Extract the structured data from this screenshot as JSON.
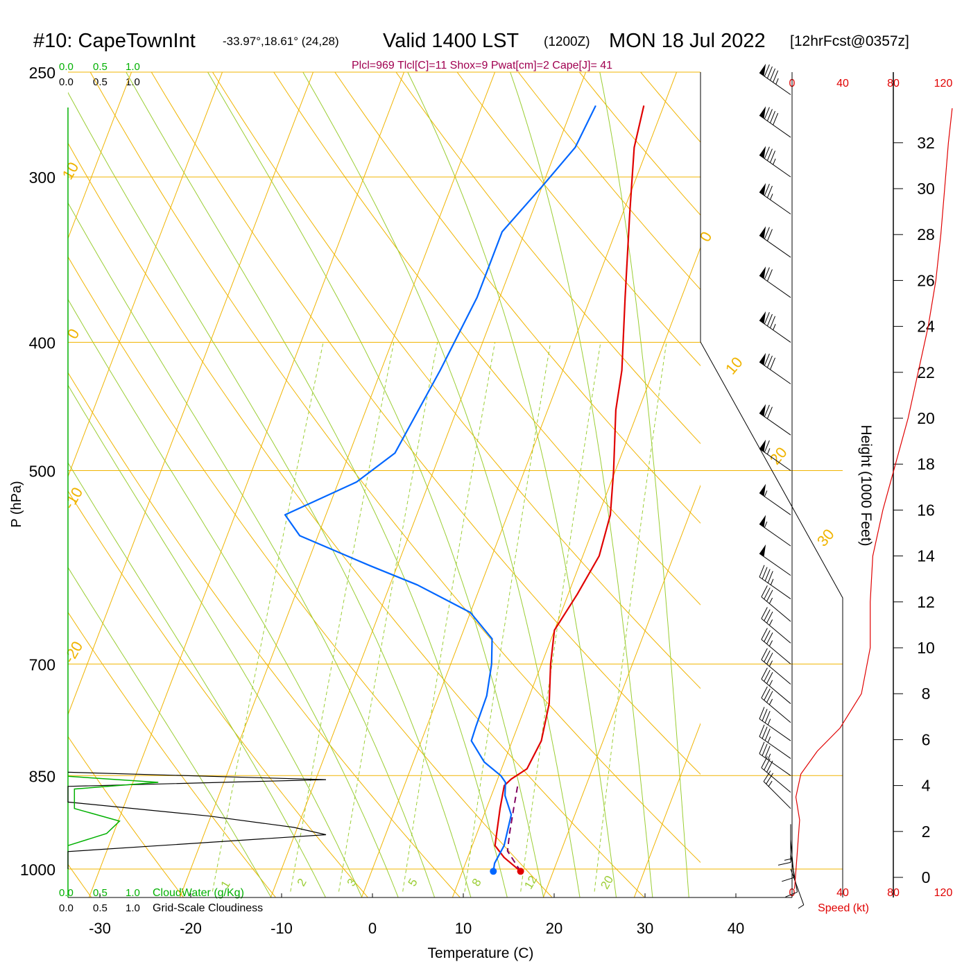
{
  "header": {
    "station": "#10: CapeTownInt",
    "coords": "-33.97°,18.61° (24,28)",
    "valid": "Valid 1400 LST",
    "utc": "(1200Z)",
    "date": "MON 18 Jul 2022",
    "fcst": "[12hrFcst@0357z]",
    "params": "Plcl=969 Tlcl[C]=11 Shox=9 Pwat[cm]=2 Cape[J]= 41"
  },
  "axes": {
    "xlabel": "Temperature (C)",
    "ylabel": "P (hPa)",
    "hlabel": "Height (1000 Feet)",
    "speed_label": "Speed (kt)",
    "cloudwater_label": "CloudWater (g/Kg)",
    "cloudiness_label": "Grid-Scale Cloudiness"
  },
  "colors": {
    "isobar": "#f0b400",
    "dry_adiabat": "#f0b400",
    "moist_adiabat": "#9acd32",
    "mixing_ratio": "#9acd32",
    "temperature": "#e00000",
    "dewpoint": "#0066ff",
    "parcel": "#800060",
    "cloudwater": "#00b000",
    "speed": "#e00000",
    "params_text": "#a00050"
  },
  "chart_data": {
    "type": "line",
    "title": "#10: CapeTownInt",
    "xlim": [
      -34,
      46
    ],
    "ylim_hpa": [
      1040,
      250
    ],
    "temp_ticks": [
      -30,
      -20,
      -10,
      0,
      10,
      20,
      30,
      40
    ],
    "pressure_ticks": [
      250,
      300,
      400,
      500,
      700,
      850,
      1000
    ],
    "height_ticks_kft": [
      0,
      2,
      4,
      6,
      8,
      10,
      12,
      14,
      16,
      18,
      20,
      22,
      24,
      26,
      28,
      30,
      32
    ],
    "speed_ticks": [
      "0",
      "40",
      "80",
      "120"
    ],
    "cloud_ticks": [
      "0.0",
      "0.5",
      "1.0"
    ],
    "dry_adiabat_labels": [
      "-20",
      "-10",
      "0",
      "10",
      "0",
      "10",
      "20",
      "30"
    ],
    "mixing_ratio_labels": [
      "1",
      "2",
      "3",
      "5",
      "8",
      "12",
      "20"
    ],
    "series": [
      {
        "name": "Temperature",
        "points": [
          [
            16.4,
            1004
          ],
          [
            14,
            980
          ],
          [
            12.5,
            960
          ],
          [
            11.5,
            900
          ],
          [
            11,
            865
          ],
          [
            11.5,
            855
          ],
          [
            12.8,
            840
          ],
          [
            13.2,
            800
          ],
          [
            12.5,
            750
          ],
          [
            11,
            700
          ],
          [
            10,
            660
          ],
          [
            11,
            620
          ],
          [
            11.8,
            580
          ],
          [
            11.3,
            540
          ],
          [
            9.8,
            500
          ],
          [
            7.5,
            450
          ],
          [
            6.5,
            420
          ],
          [
            3.8,
            370
          ],
          [
            0.8,
            320
          ],
          [
            -1.5,
            285
          ],
          [
            -2.2,
            265
          ]
        ]
      },
      {
        "name": "Dewpoint",
        "points": [
          [
            13.4,
            1004
          ],
          [
            13.2,
            990
          ],
          [
            13.5,
            960
          ],
          [
            13,
            910
          ],
          [
            11.5,
            880
          ],
          [
            11,
            860
          ],
          [
            10.2,
            850
          ],
          [
            7.8,
            830
          ],
          [
            5.5,
            800
          ],
          [
            5.4,
            780
          ],
          [
            5.3,
            740
          ],
          [
            4.5,
            700
          ],
          [
            3.5,
            670
          ],
          [
            0,
            640
          ],
          [
            -7,
            610
          ],
          [
            -13,
            590
          ],
          [
            -22,
            560
          ],
          [
            -24.5,
            540
          ],
          [
            -18,
            510
          ],
          [
            -15,
            485
          ],
          [
            -13.5,
            420
          ],
          [
            -12.5,
            370
          ],
          [
            -12.5,
            350
          ],
          [
            -12.5,
            330
          ],
          [
            -10,
            305
          ],
          [
            -8,
            285
          ],
          [
            -7.5,
            265
          ]
        ]
      },
      {
        "name": "Parcel",
        "points": [
          [
            16.4,
            1004
          ],
          [
            14.1,
            969
          ],
          [
            13.6,
            940
          ],
          [
            13,
            900
          ],
          [
            12.4,
            860
          ]
        ]
      }
    ],
    "winds": [
      {
        "p": 1000,
        "dir": 160,
        "spd": 5
      },
      {
        "p": 975,
        "dir": 170,
        "spd": 8
      },
      {
        "p": 950,
        "dir": 175,
        "spd": 12
      },
      {
        "p": 925,
        "dir": 180,
        "spd": 14
      },
      {
        "p": 900,
        "dir": 315,
        "spd": 25
      },
      {
        "p": 875,
        "dir": 310,
        "spd": 30
      },
      {
        "p": 850,
        "dir": 305,
        "spd": 35
      },
      {
        "p": 825,
        "dir": 305,
        "spd": 35
      },
      {
        "p": 800,
        "dir": 305,
        "spd": 35
      },
      {
        "p": 775,
        "dir": 310,
        "spd": 35
      },
      {
        "p": 750,
        "dir": 310,
        "spd": 35
      },
      {
        "p": 725,
        "dir": 310,
        "spd": 35
      },
      {
        "p": 700,
        "dir": 310,
        "spd": 35
      },
      {
        "p": 675,
        "dir": 310,
        "spd": 35
      },
      {
        "p": 650,
        "dir": 310,
        "spd": 35
      },
      {
        "p": 625,
        "dir": 305,
        "spd": 45
      },
      {
        "p": 600,
        "dir": 305,
        "spd": 50
      },
      {
        "p": 570,
        "dir": 305,
        "spd": 55
      },
      {
        "p": 540,
        "dir": 305,
        "spd": 55
      },
      {
        "p": 500,
        "dir": 305,
        "spd": 65
      },
      {
        "p": 470,
        "dir": 305,
        "spd": 70
      },
      {
        "p": 430,
        "dir": 305,
        "spd": 80
      },
      {
        "p": 400,
        "dir": 305,
        "spd": 85
      },
      {
        "p": 370,
        "dir": 305,
        "spd": 70
      },
      {
        "p": 345,
        "dir": 305,
        "spd": 70
      },
      {
        "p": 320,
        "dir": 305,
        "spd": 75
      },
      {
        "p": 300,
        "dir": 305,
        "spd": 85
      },
      {
        "p": 280,
        "dir": 305,
        "spd": 90
      },
      {
        "p": 260,
        "dir": 305,
        "spd": 95
      }
    ],
    "speed_profile": [
      [
        2,
        -0.5
      ],
      [
        4,
        1
      ],
      [
        6,
        2.5
      ],
      [
        3,
        3.5
      ],
      [
        7,
        4.5
      ],
      [
        20,
        5.5
      ],
      [
        38,
        6.5
      ],
      [
        55,
        8
      ],
      [
        62,
        10
      ],
      [
        62,
        12
      ],
      [
        64,
        14
      ],
      [
        72,
        16
      ],
      [
        82,
        18
      ],
      [
        92,
        20
      ],
      [
        100,
        22
      ],
      [
        108,
        24
      ],
      [
        114,
        26
      ],
      [
        118,
        28
      ],
      [
        121,
        30
      ],
      [
        124,
        32
      ],
      [
        127,
        33.5
      ]
    ],
    "cloudwater": [
      [
        0,
        851
      ],
      [
        1.4,
        860
      ],
      [
        0.1,
        870
      ],
      [
        0.1,
        900
      ],
      [
        0.8,
        920
      ],
      [
        0.6,
        940
      ],
      [
        0,
        960
      ]
    ],
    "cloudiness": [
      [
        0,
        845
      ],
      [
        4,
        856
      ],
      [
        0,
        866
      ],
      [
        0,
        890
      ],
      [
        2.2,
        912
      ],
      [
        3.5,
        930
      ],
      [
        4,
        942
      ],
      [
        0,
        970
      ],
      [
        0,
        1000
      ]
    ]
  }
}
